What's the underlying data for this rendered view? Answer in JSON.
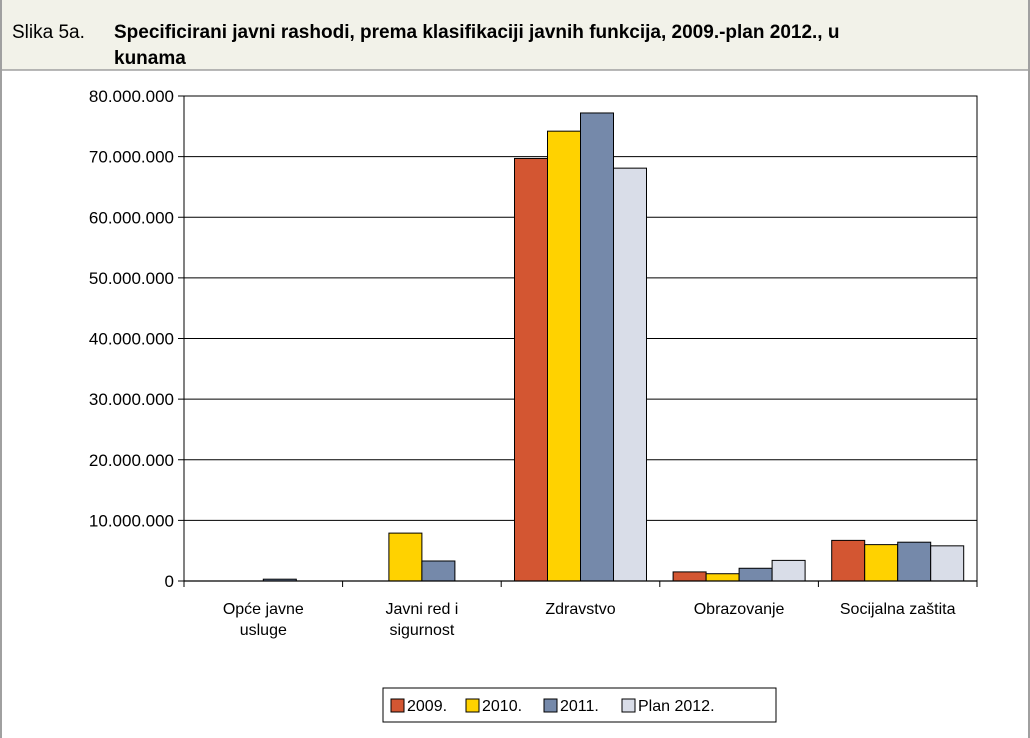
{
  "header": {
    "label": "Slika 5a.",
    "title_line1": "Specificirani javni rashodi, prema klasifikaciji javnih funkcija, 2009.-plan 2012., u",
    "title_line2": "kunama"
  },
  "colors": {
    "header_bg": "#f2f2e9",
    "frame_border": "#a0a0a0",
    "series": [
      "#d35632",
      "#ffd200",
      "#7589aa",
      "#d9dde8"
    ]
  },
  "chart_data": {
    "type": "bar",
    "categories": [
      [
        "Opće javne",
        "usluge"
      ],
      [
        "Javni red i",
        "sigurnost"
      ],
      [
        "Zdravstvo"
      ],
      [
        "Obrazovanje"
      ],
      [
        "Socijalna zaštita"
      ]
    ],
    "series": [
      {
        "name": "2009.",
        "values": [
          0,
          0,
          69700000,
          1500000,
          6700000
        ]
      },
      {
        "name": "2010.",
        "values": [
          0,
          7900000,
          74200000,
          1200000,
          6000000
        ]
      },
      {
        "name": "2011.",
        "values": [
          300000,
          3300000,
          77200000,
          2100000,
          6400000
        ]
      },
      {
        "name": "Plan 2012.",
        "values": [
          0,
          0,
          68100000,
          3400000,
          5800000
        ]
      }
    ],
    "ylim": [
      0,
      80000000
    ],
    "yticks": [
      0,
      10000000,
      20000000,
      30000000,
      40000000,
      50000000,
      60000000,
      70000000,
      80000000
    ],
    "ytick_labels": [
      "0",
      "10.000.000",
      "20.000.000",
      "30.000.000",
      "40.000.000",
      "50.000.000",
      "60.000.000",
      "70.000.000",
      "80.000.000"
    ],
    "grid": true,
    "legend_position": "bottom",
    "title": "",
    "xlabel": "",
    "ylabel": ""
  }
}
